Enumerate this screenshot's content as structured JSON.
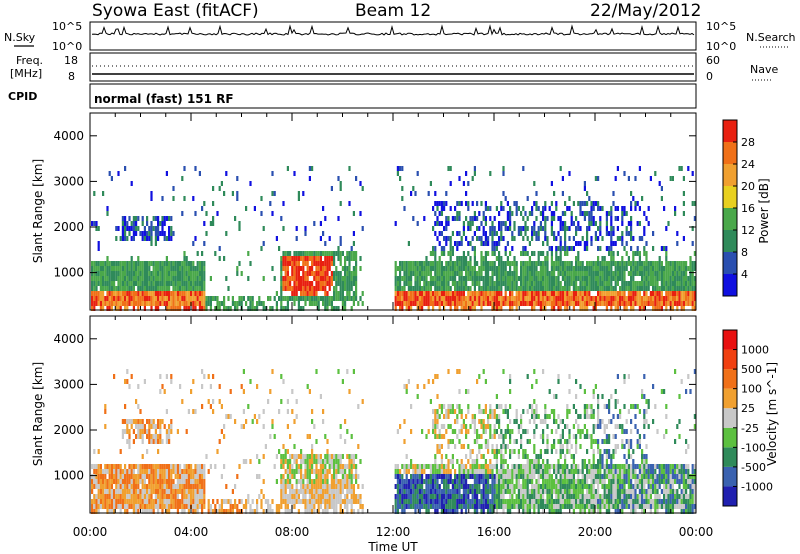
{
  "header": {
    "station": "Syowa East (fitACF)",
    "beam": "Beam 12",
    "date": "22/May/2012"
  },
  "noise_panel": {
    "left_label": "N.Sky",
    "right_label": "N.Search",
    "tick_top": "10^5",
    "tick_bottom": "10^0"
  },
  "freq_panel": {
    "left_label_1": "Freq.",
    "left_label_2": "[MHz]",
    "right_label": "Nave",
    "left_ticks": [
      "18",
      "8"
    ],
    "right_ticks": [
      "60",
      "0"
    ]
  },
  "cpid_panel": {
    "left_label": "CPID",
    "program": "normal (fast) 151 RF"
  },
  "colors": {
    "power_scale": [
      "#1010e0",
      "#2a4fb0",
      "#2f8a5a",
      "#4aa84a",
      "#e8d020",
      "#f0a030",
      "#f07018",
      "#e82010"
    ],
    "velocity_scale": [
      "#2020b0",
      "#3a62b0",
      "#2f8a5a",
      "#5cc040",
      "#c8c8c8",
      "#f0a030",
      "#f07018",
      "#f04010",
      "#e81010"
    ]
  },
  "chart_data": [
    {
      "type": "heatmap",
      "name_in_colorbar": "Power [dB]",
      "ylabel": "Slant Range [km]",
      "xlabel": "",
      "x_ticks": [
        "00:00",
        "04:00",
        "08:00",
        "12:00",
        "16:00",
        "20:00",
        "00:00"
      ],
      "x_range_hours": [
        0,
        24
      ],
      "y_ticks": [
        1000,
        2000,
        3000,
        4000
      ],
      "ylim": [
        180,
        4500
      ],
      "colorbar_ticks": [
        "4",
        "8",
        "12",
        "16",
        "20",
        "24",
        "28"
      ],
      "colorbar_range": [
        0,
        32
      ]
    },
    {
      "type": "heatmap",
      "name_in_colorbar": "Velocity [m s^-1]",
      "ylabel": "Slant Range [km]",
      "xlabel": "Time UT",
      "x_ticks": [
        "00:00",
        "04:00",
        "08:00",
        "12:00",
        "16:00",
        "20:00",
        "00:00"
      ],
      "x_range_hours": [
        0,
        24
      ],
      "y_ticks": [
        1000,
        2000,
        3000,
        4000
      ],
      "ylim": [
        180,
        4500
      ],
      "colorbar_ticks": [
        "1000",
        "500",
        "100",
        "25",
        "-25",
        "-100",
        "-500",
        "-1000"
      ]
    }
  ]
}
